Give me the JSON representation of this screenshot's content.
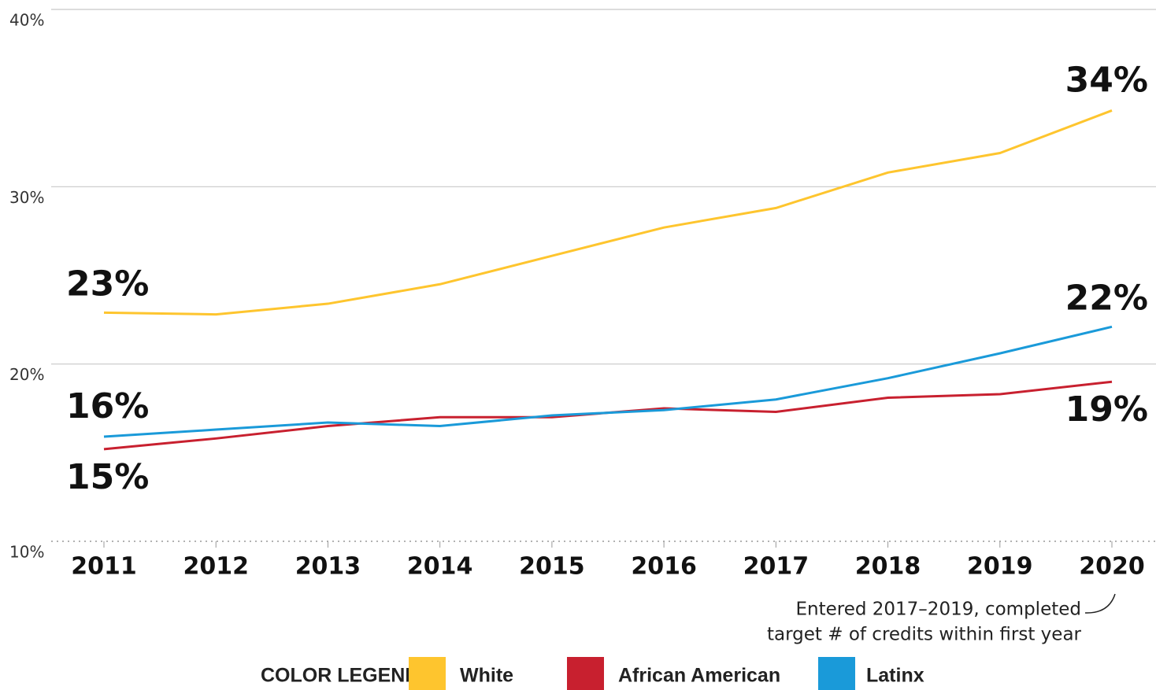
{
  "chart_data": {
    "type": "line",
    "x": [
      2011,
      2012,
      2013,
      2014,
      2015,
      2016,
      2017,
      2018,
      2019,
      2020
    ],
    "xlim": [
      2011,
      2020
    ],
    "xticks": [
      2011,
      2012,
      2013,
      2014,
      2015,
      2016,
      2017,
      2018,
      2019,
      2020
    ],
    "ylim": [
      10,
      40
    ],
    "yticks": [
      {
        "value": 10,
        "label": "10%"
      },
      {
        "value": 20,
        "label": "20%"
      },
      {
        "value": 30,
        "label": "30%"
      },
      {
        "value": 40,
        "label": "40%"
      }
    ],
    "grid": true,
    "series": [
      {
        "name": "White",
        "color": "#fec52e",
        "values": [
          22.9,
          22.8,
          23.4,
          24.5,
          26.1,
          27.7,
          28.8,
          30.8,
          31.9,
          34.3
        ],
        "value_labels": [
          "23%",
          null,
          null,
          null,
          null,
          null,
          null,
          null,
          null,
          "34%"
        ]
      },
      {
        "name": "African American",
        "color": "#c8202f",
        "values": [
          15.2,
          15.8,
          16.5,
          17.0,
          17.0,
          17.5,
          17.3,
          18.1,
          18.3,
          19.0
        ],
        "value_labels": [
          "15%",
          null,
          null,
          null,
          null,
          null,
          null,
          null,
          null,
          "19%"
        ]
      },
      {
        "name": "Latinx",
        "color": "#1a9ad9",
        "values": [
          15.9,
          16.3,
          16.7,
          16.5,
          17.1,
          17.4,
          18.0,
          19.2,
          20.6,
          22.1
        ],
        "value_labels": [
          "16%",
          null,
          null,
          null,
          null,
          null,
          null,
          null,
          null,
          "22%"
        ]
      }
    ],
    "annotation": [
      "Entered 2017–2019, completed",
      "target # of credits within first year"
    ],
    "legend_title": "COLOR LEGEND",
    "legend_position": "bottom"
  }
}
